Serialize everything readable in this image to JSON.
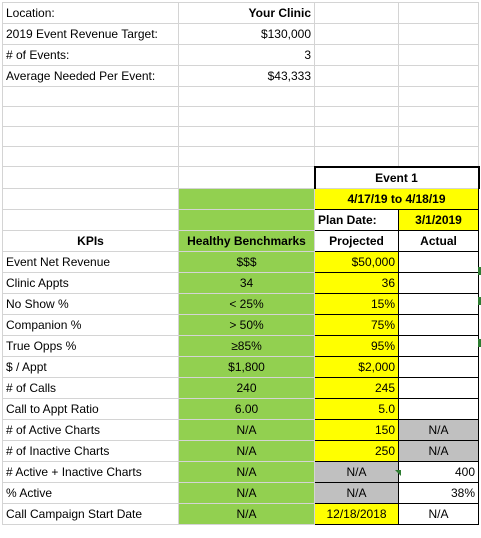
{
  "header": {
    "location_label": "Location:",
    "location_value": "Your Clinic",
    "target_label": "2019 Event Revenue Target:",
    "target_value": "$130,000",
    "events_label": "# of Events:",
    "events_value": "3",
    "average_label": "Average Needed Per Event:",
    "average_value": "$43,333"
  },
  "event": {
    "title": "Event 1",
    "dates": "4/17/19 to 4/18/19",
    "plan_date_label": "Plan Date:",
    "plan_date_value": "3/1/2019"
  },
  "columns": {
    "kpis": "KPIs",
    "benchmarks": "Healthy Benchmarks",
    "projected": "Projected",
    "actual": "Actual"
  },
  "rows": [
    {
      "kpi": "Event Net Revenue",
      "benchmark": "$$$",
      "projected": "$50,000",
      "actual": ""
    },
    {
      "kpi": "Clinic Appts",
      "benchmark": "34",
      "projected": "36",
      "actual": ""
    },
    {
      "kpi": "No Show %",
      "benchmark": "< 25%",
      "projected": "15%",
      "actual": ""
    },
    {
      "kpi": "Companion %",
      "benchmark": "> 50%",
      "projected": "75%",
      "actual": ""
    },
    {
      "kpi": "True Opps %",
      "benchmark": "≥85%",
      "projected": "95%",
      "actual": ""
    },
    {
      "kpi": "$ / Appt",
      "benchmark": "$1,800",
      "projected": "$2,000",
      "actual": ""
    },
    {
      "kpi": "# of Calls",
      "benchmark": "240",
      "projected": "245",
      "actual": ""
    },
    {
      "kpi": "Call to Appt Ratio",
      "benchmark": "6.00",
      "projected": "5.0",
      "actual": ""
    },
    {
      "kpi": "# of Active Charts",
      "benchmark": "N/A",
      "projected": "150",
      "actual": "N/A"
    },
    {
      "kpi": "# of Inactive Charts",
      "benchmark": "N/A",
      "projected": "250",
      "actual": "N/A"
    },
    {
      "kpi": "# Active + Inactive Charts",
      "benchmark": "N/A",
      "projected": "N/A",
      "actual": "400"
    },
    {
      "kpi": "% Active",
      "benchmark": "N/A",
      "projected": "N/A",
      "actual": "38%"
    },
    {
      "kpi": "Call Campaign Start Date",
      "benchmark": "N/A",
      "projected": "12/18/2018",
      "actual": "N/A"
    }
  ],
  "colors": {
    "yellow": "#ffff00",
    "green": "#92d050",
    "gray": "#c0c0c0",
    "gridline": "#d4d4d4",
    "comment_marker": "#2e7d32"
  }
}
